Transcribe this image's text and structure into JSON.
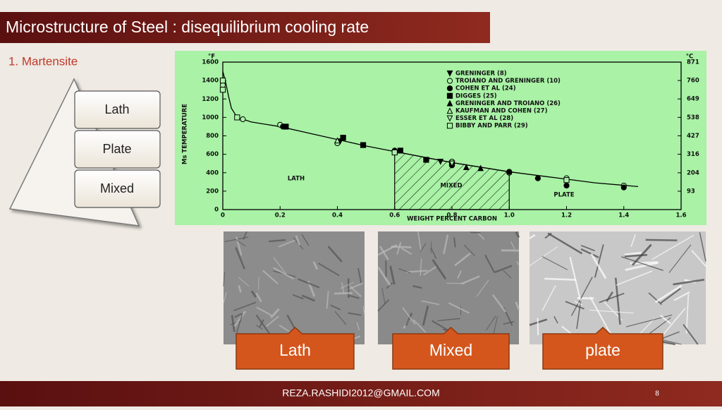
{
  "header": {
    "title": "Microstructure of Steel : disequilibrium  cooling rate",
    "subtitle": "1. Martensite"
  },
  "pyramid": {
    "levels": [
      "Lath",
      "Plate",
      "Mixed"
    ]
  },
  "chart_data": {
    "type": "scatter",
    "x_label": "WEIGHT PERCENT CARBON",
    "y_label": "Ms TEMPERATURE",
    "y_unit": "°F",
    "y2_unit": "°C",
    "xlim": [
      0,
      1.6
    ],
    "xticks": [
      0,
      0.2,
      0.4,
      0.6,
      0.8,
      {
        "value": 1,
        "label": "1.0"
      },
      1.2,
      1.4,
      1.6
    ],
    "ylim": [
      0,
      1600
    ],
    "yticks": [
      0,
      200,
      400,
      600,
      800,
      1000,
      1200,
      1400,
      1600
    ],
    "y2lim": [
      -17.8,
      871
    ],
    "y2ticks": [
      93,
      204,
      316,
      427,
      538,
      649,
      760,
      871
    ],
    "annotations": [
      "LATH",
      "MIXED",
      "PLATE"
    ],
    "mixed_range": [
      0.6,
      1.0
    ],
    "fit": {
      "x": [
        0,
        0.01,
        0.02,
        0.03,
        0.05,
        0.1,
        0.2,
        0.3,
        0.4,
        0.5,
        0.6,
        0.7,
        0.8,
        0.9,
        1.0,
        1.1,
        1.2,
        1.3,
        1.45
      ],
      "values": [
        1500,
        1380,
        1230,
        1100,
        1000,
        950,
        900,
        830,
        760,
        690,
        630,
        570,
        510,
        460,
        410,
        370,
        330,
        290,
        250
      ]
    },
    "series": [
      {
        "name": "GRENINGER (8)",
        "marker": "v-filled",
        "color": "#000000",
        "x": [
          0.41,
          0.76
        ],
        "values": [
          740,
          520
        ]
      },
      {
        "name": "TROIANO AND GRENINGER (10)",
        "marker": "o-open",
        "color": "#000000",
        "x": [
          0,
          0.07,
          0.2,
          0.4,
          0.6,
          0.8,
          1.0,
          1.2,
          1.4
        ],
        "values": [
          1350,
          980,
          920,
          720,
          620,
          520,
          400,
          340,
          260
        ]
      },
      {
        "name": "COHEN ET AL (24)",
        "marker": "o-filled",
        "color": "#000000",
        "x": [
          0.21,
          0.6,
          0.8,
          1.0,
          1.1,
          1.2,
          1.4
        ],
        "values": [
          900,
          640,
          480,
          410,
          340,
          260,
          240
        ]
      },
      {
        "name": "DIGGES (25)",
        "marker": "s-filled",
        "color": "#000000",
        "x": [
          0.22,
          0.42,
          0.49,
          0.62,
          0.71,
          0.8
        ],
        "values": [
          900,
          780,
          700,
          640,
          540,
          500
        ]
      },
      {
        "name": "GRENINGER AND TROIANO (26)",
        "marker": "^-filled",
        "color": "#000000",
        "x": [
          0.85,
          0.9
        ],
        "values": [
          460,
          450
        ]
      },
      {
        "name": "KAUFMAN AND COHEN (27)",
        "marker": "^-open",
        "color": "#000000",
        "x": [
          0.4
        ],
        "values": [
          750
        ]
      },
      {
        "name": "ESSER ET AL (28)",
        "marker": "v-open",
        "color": "#000000",
        "x": [
          0.8
        ],
        "values": [
          500
        ]
      },
      {
        "name": "BIBBY AND PARR (29)",
        "marker": "s-open",
        "color": "#000000",
        "x": [
          0,
          0,
          0.05,
          0.6,
          1.2
        ],
        "values": [
          1400,
          1300,
          1000,
          620,
          320
        ]
      }
    ]
  },
  "micrographs": {
    "labels": [
      "Lath",
      "Mixed",
      "plate"
    ]
  },
  "footer": {
    "email": "REZA.RASHIDI2012@GMAIL.COM",
    "page": "8"
  }
}
